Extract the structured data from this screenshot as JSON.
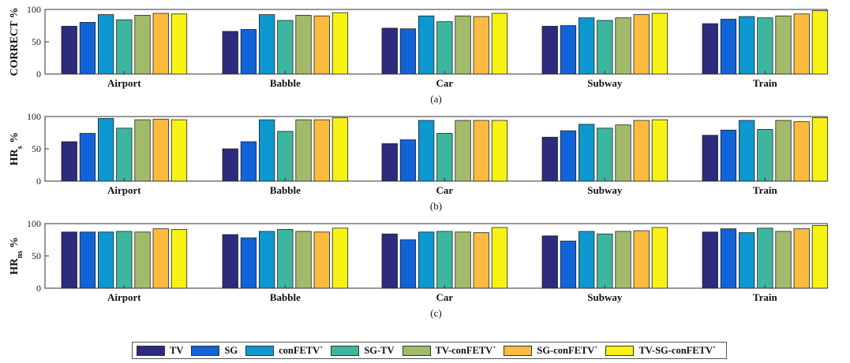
{
  "chart_data": [
    {
      "type": "bar",
      "panel_label": "(a)",
      "ylabel": "CORRECT %",
      "ylim": [
        0,
        100
      ],
      "yticks": [
        "0",
        "50",
        "100"
      ],
      "categories": [
        "Airport",
        "Babble",
        "Car",
        "Subway",
        "Train"
      ],
      "series": [
        {
          "name": "TV",
          "values": [
            74,
            66,
            71,
            74,
            78
          ]
        },
        {
          "name": "SG",
          "values": [
            80,
            69,
            70,
            75,
            85
          ]
        },
        {
          "name": "conFETV`",
          "values": [
            92,
            92,
            90,
            87,
            89
          ]
        },
        {
          "name": "SG-TV",
          "values": [
            84,
            83,
            81,
            83,
            87
          ]
        },
        {
          "name": "TV-conFETV`",
          "values": [
            91,
            91,
            90,
            87,
            90
          ]
        },
        {
          "name": "SG-conFETV`",
          "values": [
            94,
            90,
            89,
            92,
            93
          ]
        },
        {
          "name": "TV-SG-conFETV`",
          "values": [
            93,
            95,
            94,
            94,
            98
          ]
        }
      ]
    },
    {
      "type": "bar",
      "panel_label": "(b)",
      "ylabel_main": "HR",
      "ylabel_sub": "s",
      "ylabel_tail": " %",
      "ylim": [
        0,
        100
      ],
      "yticks": [
        "0",
        "50",
        "100"
      ],
      "categories": [
        "Airport",
        "Babble",
        "Car",
        "Subway",
        "Train"
      ],
      "series": [
        {
          "name": "TV",
          "values": [
            61,
            50,
            58,
            68,
            71
          ]
        },
        {
          "name": "SG",
          "values": [
            74,
            61,
            64,
            78,
            79
          ]
        },
        {
          "name": "conFETV`",
          "values": [
            97,
            95,
            94,
            88,
            94
          ]
        },
        {
          "name": "SG-TV",
          "values": [
            82,
            77,
            74,
            82,
            80
          ]
        },
        {
          "name": "TV-conFETV`",
          "values": [
            95,
            95,
            94,
            87,
            94
          ]
        },
        {
          "name": "SG-conFETV`",
          "values": [
            96,
            95,
            94,
            94,
            92
          ]
        },
        {
          "name": "TV-SG-conFETV`",
          "values": [
            95,
            98,
            94,
            95,
            98
          ]
        }
      ]
    },
    {
      "type": "bar",
      "panel_label": "(c)",
      "ylabel_main": "HR",
      "ylabel_sub": "ns",
      "ylabel_tail": " %",
      "ylim": [
        0,
        100
      ],
      "yticks": [
        "0",
        "50",
        "100"
      ],
      "categories": [
        "Airport",
        "Babble",
        "Car",
        "Subway",
        "Train"
      ],
      "series": [
        {
          "name": "TV",
          "values": [
            87,
            83,
            84,
            81,
            87
          ]
        },
        {
          "name": "SG",
          "values": [
            87,
            78,
            75,
            73,
            92
          ]
        },
        {
          "name": "conFETV`",
          "values": [
            87,
            88,
            87,
            88,
            86
          ]
        },
        {
          "name": "SG-TV",
          "values": [
            88,
            91,
            88,
            84,
            93
          ]
        },
        {
          "name": "TV-conFETV`",
          "values": [
            87,
            88,
            87,
            88,
            88
          ]
        },
        {
          "name": "SG-conFETV`",
          "values": [
            92,
            87,
            86,
            89,
            92
          ]
        },
        {
          "name": "TV-SG-conFETV`",
          "values": [
            91,
            93,
            94,
            94,
            97
          ]
        }
      ]
    }
  ],
  "colors": [
    "#2c2b7e",
    "#1163d8",
    "#0e98d0",
    "#3cb69f",
    "#a2bb6b",
    "#fbbb3f",
    "#f7f214"
  ],
  "legend": [
    {
      "label": "TV"
    },
    {
      "label": "SG"
    },
    {
      "label": "conFETV`"
    },
    {
      "label": "SG-TV"
    },
    {
      "label": "TV-conFETV`"
    },
    {
      "label": "SG-conFETV`"
    },
    {
      "label": "TV-SG-conFETV`"
    }
  ]
}
